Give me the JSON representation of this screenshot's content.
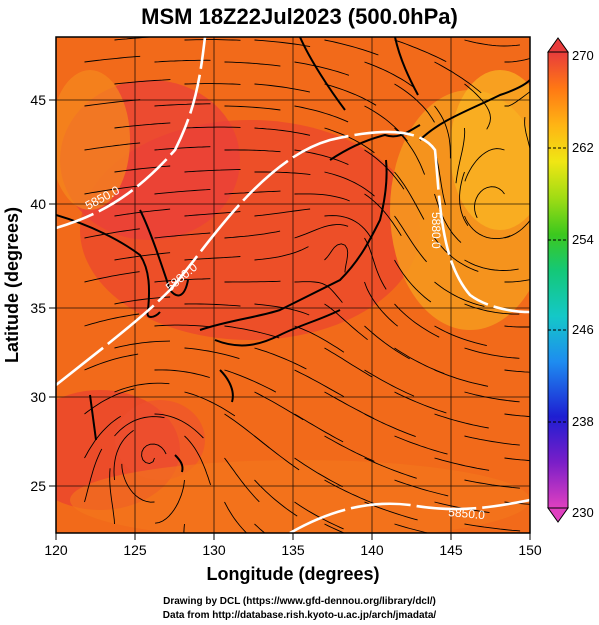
{
  "title": "MSM 18Z22Jul2023 (500.0hPa)",
  "xlabel": "Longitude (degrees)",
  "ylabel": "Latitude  (degrees)",
  "x_ticks": [
    "120",
    "125",
    "130",
    "135",
    "140",
    "145",
    "150"
  ],
  "y_ticks": [
    "25",
    "30",
    "35",
    "40",
    "45"
  ],
  "colorbar": {
    "ticks": [
      "270",
      "262",
      "254",
      "246",
      "238",
      "230"
    ],
    "range": [
      230,
      270
    ],
    "colors": [
      "#e040c0",
      "#7a1ec8",
      "#1e1ed2",
      "#1e8cf0",
      "#14c8c8",
      "#14c878",
      "#3cc81e",
      "#a0dc14",
      "#f0e614",
      "#ffb414",
      "#ff7814",
      "#f03c1e",
      "#e83c3c"
    ]
  },
  "contours": [
    {
      "label": "5850.0",
      "value": 5850
    },
    {
      "label": "5880.0",
      "value": 5880
    },
    {
      "label": "5850.0",
      "value": 5850
    },
    {
      "label": "5880.0",
      "value": 5880
    }
  ],
  "credits": {
    "drawing": "Drawing by DCL (https://www.gfd-dennou.org/library/dcl/)",
    "data": "Data from http://database.rish.kyoto-u.ac.jp/arch/jmadata/"
  }
}
